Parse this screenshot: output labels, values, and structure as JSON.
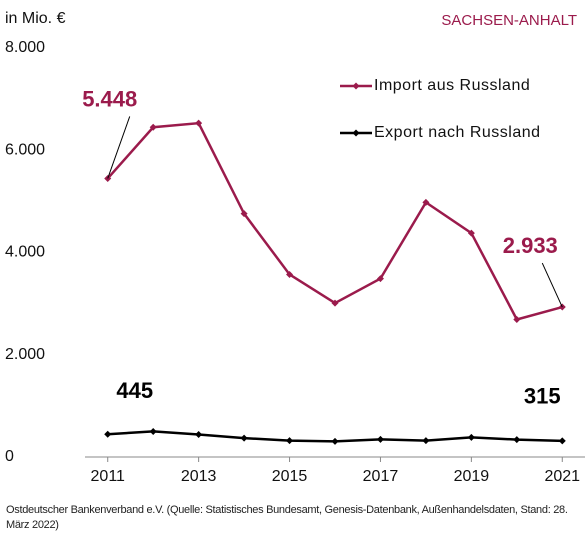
{
  "chart_data": {
    "type": "line",
    "title": "SACHSEN-ANHALT",
    "y_label": "in Mio. €",
    "source": "Ostdeutscher Bankenverband e.V. (Quelle: Statistisches Bundesamt, Genesis-Datenbank, Außenhandelsdaten, Stand: 28. März 2022)",
    "x": [
      2011,
      2012,
      2013,
      2014,
      2015,
      2016,
      2017,
      2018,
      2019,
      2020,
      2021
    ],
    "xlim": [
      2010.5,
      2021.5
    ],
    "xticks": [
      2011,
      2013,
      2015,
      2017,
      2019,
      2021
    ],
    "ylim": [
      0,
      8000
    ],
    "yticks": [
      0,
      {
        "value": 2000,
        "label": "2.000"
      },
      {
        "value": 4000,
        "label": "4.000"
      },
      {
        "value": 6000,
        "label": "6.000"
      },
      {
        "value": 8000,
        "label": "8.000"
      }
    ],
    "legend": "upper right",
    "series": [
      {
        "name": "Import aus Russland",
        "color": "#9b1b4c",
        "values": [
          5448,
          6450,
          6530,
          4760,
          3570,
          3010,
          3490,
          4980,
          4380,
          2690,
          2933
        ],
        "value_labels": [
          "5.448",
          null,
          null,
          null,
          null,
          null,
          null,
          null,
          null,
          null,
          "2.933"
        ]
      },
      {
        "name": "Export nach Russland",
        "color": "#000000",
        "values": [
          445,
          500,
          440,
          370,
          320,
          305,
          345,
          320,
          385,
          340,
          315
        ],
        "value_labels": [
          "445",
          null,
          null,
          null,
          null,
          null,
          null,
          null,
          null,
          null,
          "315"
        ]
      }
    ]
  }
}
